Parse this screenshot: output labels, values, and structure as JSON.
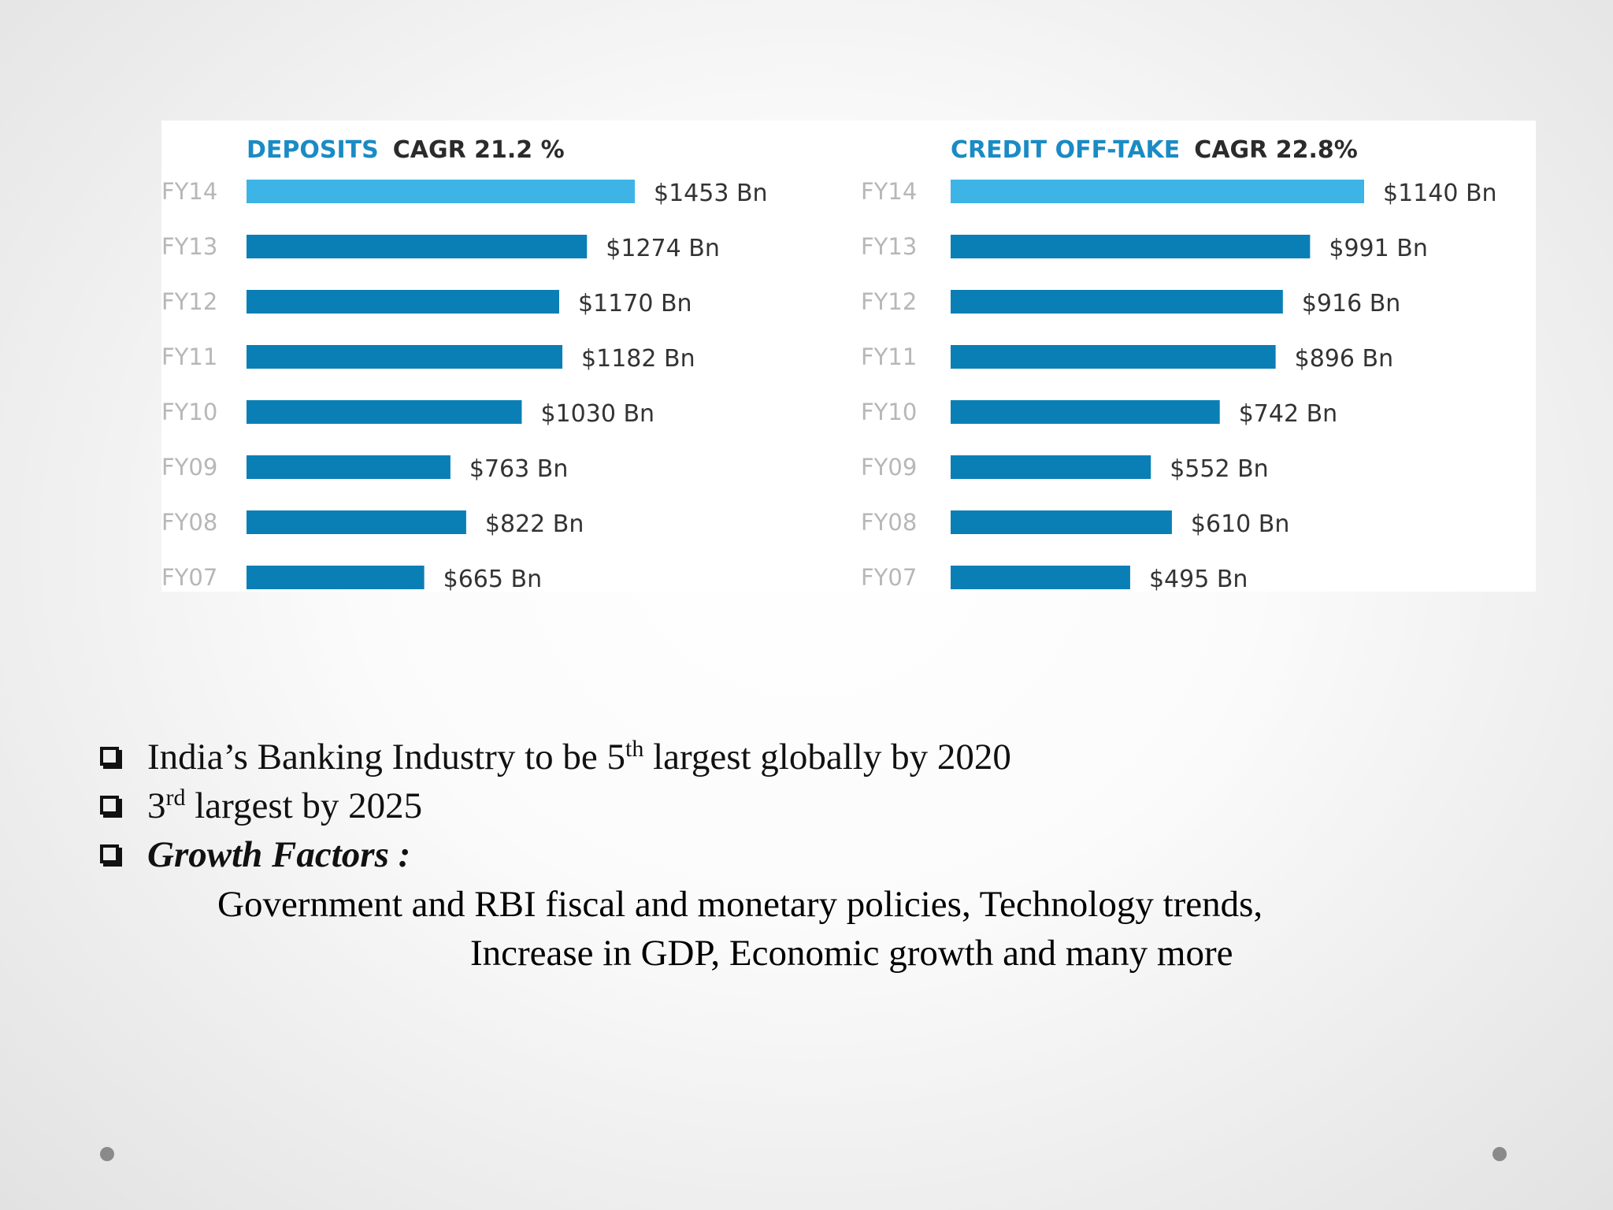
{
  "chart_data": [
    {
      "type": "bar",
      "orientation": "horizontal",
      "title_part1": "DEPOSITS",
      "title_part2": "CAGR 21.2 %",
      "categories": [
        "FY14",
        "FY13",
        "FY12",
        "FY11",
        "FY10",
        "FY09",
        "FY08",
        "FY07"
      ],
      "values": [
        1453,
        1274,
        1170,
        1182,
        1030,
        763,
        822,
        665
      ],
      "value_labels": [
        "$1453 Bn",
        "$1274 Bn",
        "$1170 Bn",
        "$1182 Bn",
        "$1030 Bn",
        "$763 Bn",
        "$822 Bn",
        "$665 Bn"
      ],
      "unit": "$ Bn",
      "highlight_color": "#3db3e6",
      "bar_color": "#0a7fb5",
      "title_color": "#1a8bc4"
    },
    {
      "type": "bar",
      "orientation": "horizontal",
      "title_part1": "CREDIT OFF-TAKE",
      "title_part2": "CAGR 22.8%",
      "categories": [
        "FY14",
        "FY13",
        "FY12",
        "FY11",
        "FY10",
        "FY09",
        "FY08",
        "FY07"
      ],
      "values": [
        1140,
        991,
        916,
        896,
        742,
        552,
        610,
        495
      ],
      "value_labels": [
        "$1140 Bn",
        "$991 Bn",
        "$916 Bn",
        "$896 Bn",
        "$742 Bn",
        "$552 Bn",
        "$610 Bn",
        "$495 Bn"
      ],
      "unit": "$ Bn",
      "highlight_color": "#3db3e6",
      "bar_color": "#0a7fb5",
      "title_color": "#1a8bc4"
    }
  ],
  "bullets": {
    "b1_pre": "India’s Banking Industry to be 5",
    "b1_sup": "th",
    "b1_post": " largest globally by 2020",
    "b2_pre": "3",
    "b2_sup": "rd",
    "b2_post": " largest by 2025",
    "b3": "Growth Factors :",
    "detail_line1": "Government and RBI fiscal and monetary policies, Technology trends,",
    "detail_line2": "Increase in GDP, Economic growth and many more"
  },
  "colors": {
    "dot": "#8a8a8a"
  }
}
